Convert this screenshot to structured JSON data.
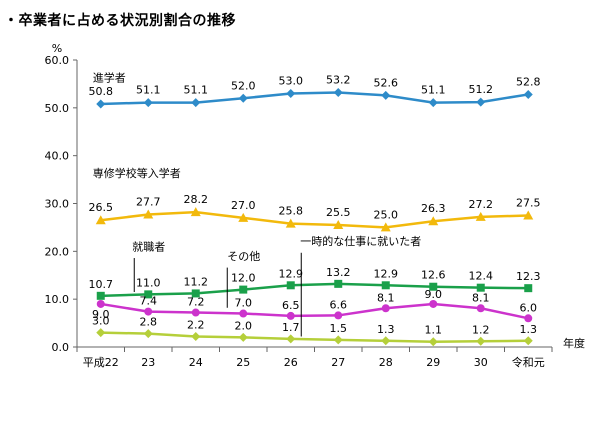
{
  "title": "・卒業者に占める状況別割合の推移",
  "chart_data": {
    "type": "line",
    "categories": [
      "平成22",
      "23",
      "24",
      "25",
      "26",
      "27",
      "28",
      "29",
      "30",
      "令和元"
    ],
    "xunit": "年度",
    "yunit": "%",
    "ylim": [
      0,
      60
    ],
    "yticks": [
      "0.0",
      "10.0",
      "20.0",
      "30.0",
      "40.0",
      "50.0",
      "60.0"
    ],
    "grid": false,
    "series": [
      {
        "name": "進学者",
        "color": "#2e8bc9",
        "marker": "diamond",
        "values": [
          50.8,
          51.1,
          51.1,
          52.0,
          53.0,
          53.2,
          52.6,
          51.1,
          51.2,
          52.8
        ]
      },
      {
        "name": "専修学校等入学者",
        "color": "#f2b90c",
        "marker": "triangle",
        "values": [
          26.5,
          27.7,
          28.2,
          27.0,
          25.8,
          25.5,
          25.0,
          26.3,
          27.2,
          27.5
        ]
      },
      {
        "name": "就職者",
        "color": "#1aa04a",
        "marker": "square",
        "values": [
          10.7,
          11.0,
          11.2,
          12.0,
          12.9,
          13.2,
          12.9,
          12.6,
          12.4,
          12.3
        ]
      },
      {
        "name": "その他",
        "color": "#cc33cc",
        "marker": "circle",
        "values": [
          9.0,
          7.4,
          7.2,
          7.0,
          6.5,
          6.6,
          8.1,
          9.0,
          8.1,
          6.0
        ]
      },
      {
        "name": "一時的な仕事に就いた者",
        "color": "#b5cf3a",
        "marker": "diamond",
        "values": [
          3.0,
          2.8,
          2.2,
          2.0,
          1.7,
          1.5,
          1.3,
          1.1,
          1.2,
          1.3
        ]
      }
    ]
  }
}
